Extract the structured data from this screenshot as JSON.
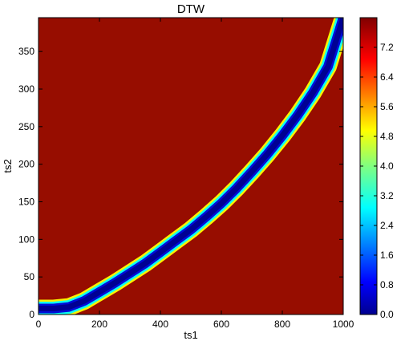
{
  "chart_data": {
    "type": "heatmap",
    "title": "DTW",
    "xlabel": "ts1",
    "ylabel": "ts2",
    "xlim": [
      0,
      1000
    ],
    "ylim": [
      0,
      395
    ],
    "x_ticks": [
      "0",
      "200",
      "400",
      "600",
      "800",
      "1000"
    ],
    "y_ticks": [
      "0",
      "50",
      "100",
      "150",
      "200",
      "250",
      "300",
      "350"
    ],
    "colormap": "jet",
    "colorbar": {
      "range": [
        0,
        8
      ],
      "ticks": [
        "0.0",
        "0.8",
        "1.6",
        "2.4",
        "3.2",
        "4.0",
        "4.8",
        "5.6",
        "6.4",
        "7.2"
      ]
    },
    "background_value": 8,
    "warping_path": {
      "x": [
        0,
        50,
        100,
        150,
        200,
        250,
        300,
        350,
        400,
        450,
        500,
        550,
        600,
        650,
        700,
        750,
        800,
        850,
        900,
        950,
        1000
      ],
      "y": [
        8,
        8,
        10,
        18,
        30,
        42,
        55,
        68,
        83,
        98,
        113,
        130,
        148,
        168,
        190,
        213,
        238,
        265,
        295,
        330,
        395
      ]
    }
  }
}
